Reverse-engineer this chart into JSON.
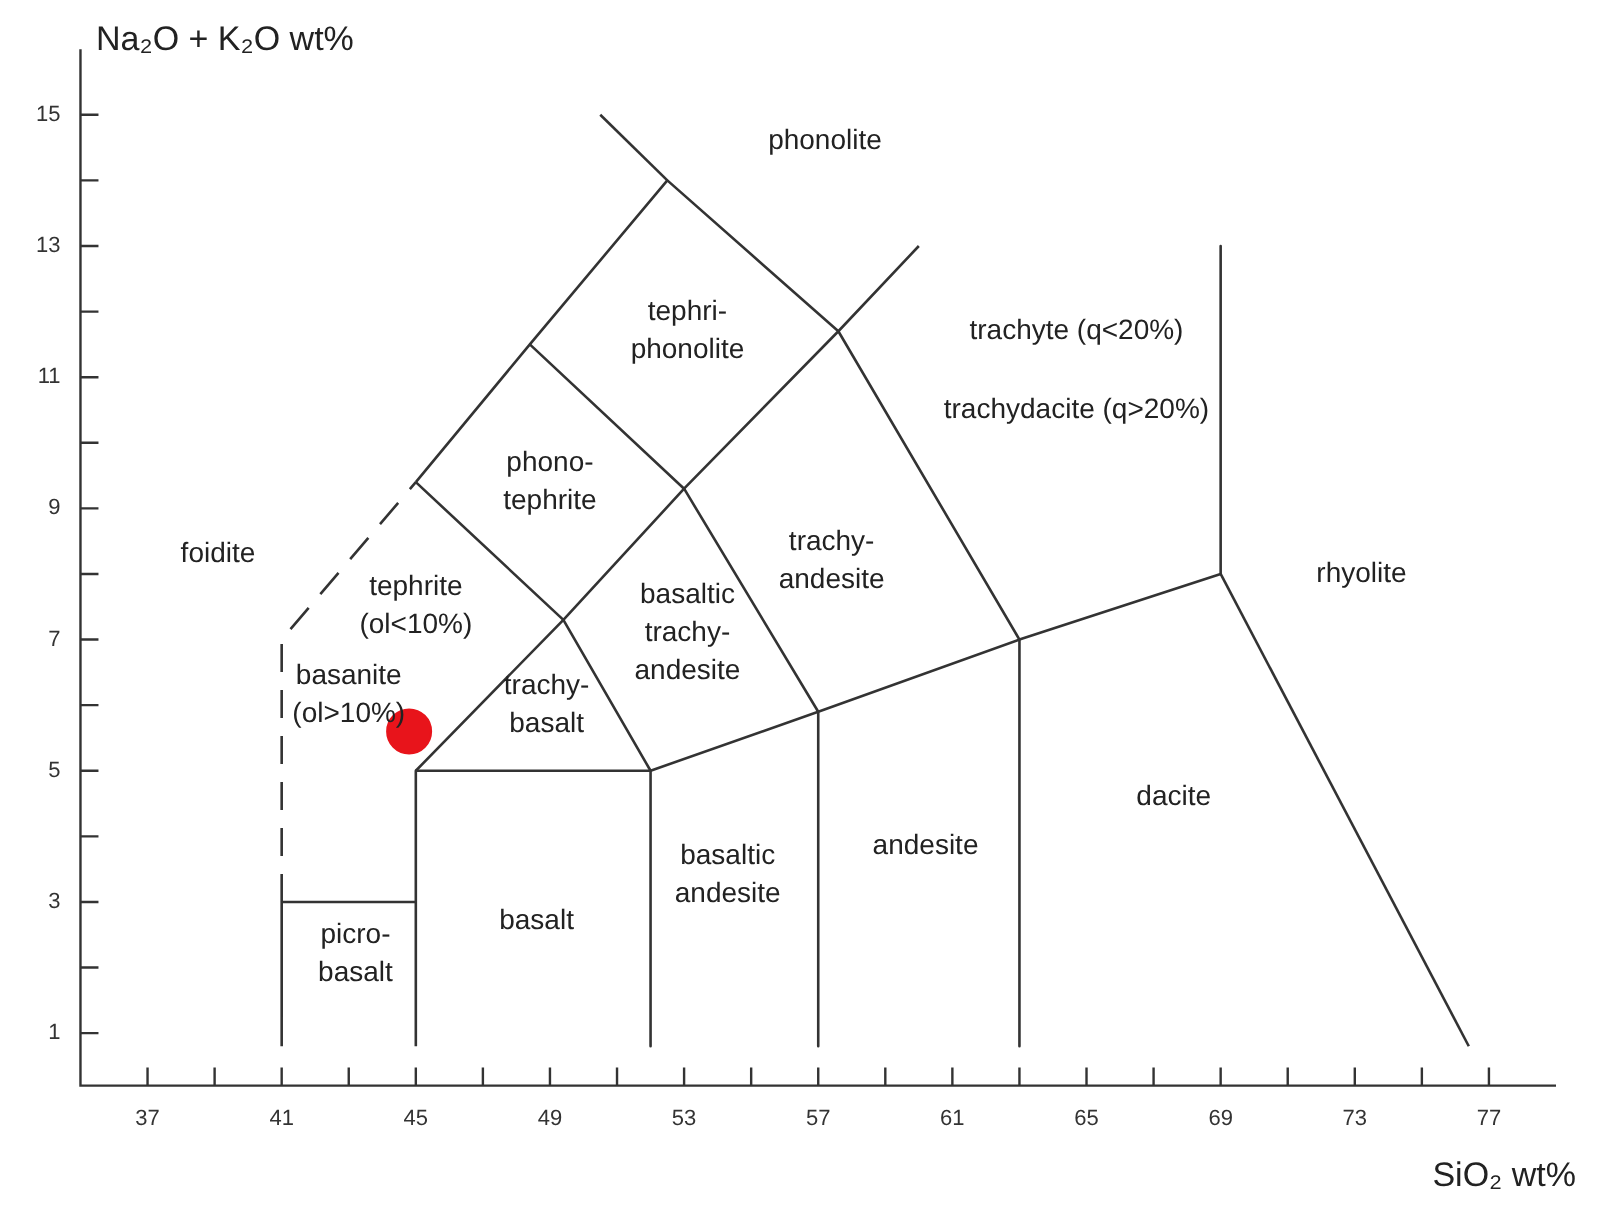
{
  "chart_data": {
    "type": "scatter",
    "xlabel": "SiO₂ wt%",
    "ylabel": "Na₂O + K₂O wt%",
    "xlim": [
      35,
      79
    ],
    "ylim": [
      0.2,
      16
    ],
    "xticks": [
      37,
      {
        "value": 39,
        "label": null
      },
      41,
      {
        "value": 43,
        "label": null
      },
      45,
      {
        "value": 47,
        "label": null
      },
      49,
      {
        "value": 51,
        "label": null
      },
      53,
      {
        "value": 55,
        "label": null
      },
      57,
      {
        "value": 59,
        "label": null
      },
      61,
      {
        "value": 63,
        "label": null
      },
      65,
      {
        "value": 67,
        "label": null
      },
      69,
      {
        "value": 71,
        "label": null
      },
      73,
      {
        "value": 75,
        "label": null
      },
      77
    ],
    "yticks": [
      1,
      {
        "value": 2,
        "label": null
      },
      3,
      {
        "value": 4,
        "label": null
      },
      5,
      {
        "value": 6,
        "label": null
      },
      7,
      {
        "value": 8,
        "label": null
      },
      9,
      {
        "value": 10,
        "label": null
      },
      11,
      {
        "value": 12,
        "label": null
      },
      13,
      {
        "value": 14,
        "label": null
      },
      15
    ],
    "series": [
      {
        "type": "line",
        "color": "#333333",
        "line_style": "solid",
        "x": [
          41,
          41
        ],
        "values": [
          0.8,
          3
        ]
      },
      {
        "type": "line",
        "color": "#333333",
        "line_style": "dashed",
        "x": [
          41,
          41,
          45
        ],
        "values": [
          3,
          7,
          9.4
        ]
      },
      {
        "type": "line",
        "color": "#333333",
        "line_style": "solid",
        "x": [
          41,
          45
        ],
        "values": [
          3,
          3
        ]
      },
      {
        "type": "line",
        "color": "#333333",
        "line_style": "solid",
        "x": [
          45,
          45,
          52,
          52
        ],
        "values": [
          0.8,
          5,
          5,
          0.8
        ]
      },
      {
        "type": "line",
        "color": "#333333",
        "line_style": "solid",
        "x": [
          52,
          57,
          63,
          69
        ],
        "values": [
          5,
          5.9,
          7,
          8
        ]
      },
      {
        "type": "line",
        "color": "#333333",
        "line_style": "solid",
        "x": [
          57,
          57
        ],
        "values": [
          5.9,
          0.8
        ]
      },
      {
        "type": "line",
        "color": "#333333",
        "line_style": "solid",
        "x": [
          63,
          63
        ],
        "values": [
          7,
          0.8
        ]
      },
      {
        "type": "line",
        "color": "#333333",
        "line_style": "solid",
        "x": [
          69,
          69
        ],
        "values": [
          13,
          8
        ]
      },
      {
        "type": "line",
        "color": "#333333",
        "line_style": "solid",
        "x": [
          69,
          76.4
        ],
        "values": [
          8,
          0.8
        ]
      },
      {
        "type": "line",
        "color": "#333333",
        "line_style": "solid",
        "x": [
          45,
          49.4,
          52
        ],
        "values": [
          5,
          7.3,
          5
        ]
      },
      {
        "type": "line",
        "color": "#333333",
        "line_style": "solid",
        "x": [
          45,
          49.4,
          53,
          57.6,
          60
        ],
        "values": [
          9.4,
          7.3,
          9.3,
          11.7,
          13
        ]
      },
      {
        "type": "line",
        "color": "#333333",
        "line_style": "solid",
        "x": [
          45,
          48.4,
          52.5,
          57.6,
          63
        ],
        "values": [
          9.4,
          11.5,
          14,
          11.7,
          7
        ]
      },
      {
        "type": "line",
        "color": "#333333",
        "line_style": "solid",
        "x": [
          48.4,
          53,
          57
        ],
        "values": [
          11.5,
          9.3,
          5.9
        ]
      },
      {
        "type": "line",
        "color": "#333333",
        "line_style": "solid",
        "x": [
          52.5,
          50.5
        ],
        "values": [
          14,
          15
        ]
      },
      {
        "type": "scatter",
        "color": "#e8141b",
        "marker": "circle",
        "x": [
          44.8
        ],
        "values": [
          5.6
        ]
      }
    ],
    "annotations": [
      "phonolite",
      "tephri-\nphonolite",
      "phono-\ntephrite",
      "foidite",
      "tephrite\n(ol<10%)",
      "basanite\n(ol>10%)",
      "trachy-\nbasalt",
      "basaltic\ntrachy-\nandesite",
      "trachy-\nandesite",
      "trachyte (q<20%)",
      "trachydacite (q>20%)",
      "rhyolite",
      "dacite",
      "andesite",
      "basaltic\nandesite",
      "basalt",
      "picro-\nbasalt"
    ]
  }
}
